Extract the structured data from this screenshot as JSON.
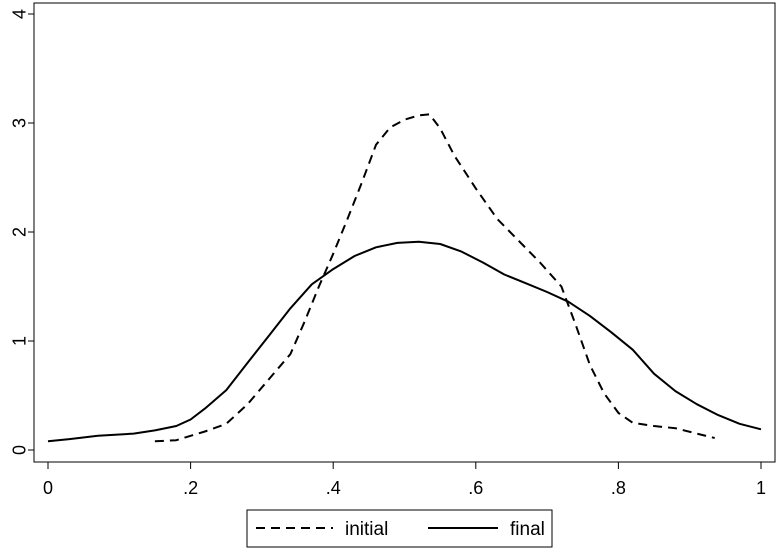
{
  "chart_data": {
    "type": "line",
    "title": "",
    "xlabel": "",
    "ylabel": "",
    "xlim": [
      0,
      1
    ],
    "ylim": [
      0,
      4
    ],
    "grid": false,
    "legend_position": "bottom",
    "x_ticks": [
      {
        "value": 0,
        "label": "0"
      },
      {
        "value": 0.2,
        "label": ".2"
      },
      {
        "value": 0.4,
        "label": ".4"
      },
      {
        "value": 0.6,
        "label": ".6"
      },
      {
        "value": 0.8,
        "label": ".8"
      },
      {
        "value": 1,
        "label": "1"
      }
    ],
    "y_ticks": [
      {
        "value": 0,
        "label": "0"
      },
      {
        "value": 1,
        "label": "1"
      },
      {
        "value": 2,
        "label": "2"
      },
      {
        "value": 3,
        "label": "3"
      },
      {
        "value": 4,
        "label": "4"
      }
    ],
    "series": [
      {
        "name": "initial",
        "style": "dashed",
        "color": "#000000",
        "points": [
          [
            0.15,
            0.08
          ],
          [
            0.18,
            0.09
          ],
          [
            0.2,
            0.13
          ],
          [
            0.22,
            0.17
          ],
          [
            0.25,
            0.24
          ],
          [
            0.28,
            0.42
          ],
          [
            0.31,
            0.65
          ],
          [
            0.34,
            0.88
          ],
          [
            0.36,
            1.18
          ],
          [
            0.38,
            1.5
          ],
          [
            0.4,
            1.8
          ],
          [
            0.42,
            2.12
          ],
          [
            0.44,
            2.45
          ],
          [
            0.46,
            2.8
          ],
          [
            0.48,
            2.96
          ],
          [
            0.5,
            3.03
          ],
          [
            0.52,
            3.07
          ],
          [
            0.535,
            3.08
          ],
          [
            0.55,
            2.95
          ],
          [
            0.57,
            2.7
          ],
          [
            0.6,
            2.4
          ],
          [
            0.63,
            2.12
          ],
          [
            0.66,
            1.92
          ],
          [
            0.69,
            1.72
          ],
          [
            0.72,
            1.5
          ],
          [
            0.74,
            1.15
          ],
          [
            0.76,
            0.78
          ],
          [
            0.78,
            0.52
          ],
          [
            0.8,
            0.34
          ],
          [
            0.82,
            0.25
          ],
          [
            0.85,
            0.22
          ],
          [
            0.88,
            0.2
          ],
          [
            0.91,
            0.15
          ],
          [
            0.935,
            0.11
          ]
        ]
      },
      {
        "name": "final",
        "style": "solid",
        "color": "#000000",
        "points": [
          [
            0.0,
            0.08
          ],
          [
            0.03,
            0.1
          ],
          [
            0.07,
            0.13
          ],
          [
            0.12,
            0.15
          ],
          [
            0.15,
            0.18
          ],
          [
            0.18,
            0.22
          ],
          [
            0.2,
            0.28
          ],
          [
            0.22,
            0.38
          ],
          [
            0.25,
            0.55
          ],
          [
            0.28,
            0.8
          ],
          [
            0.31,
            1.05
          ],
          [
            0.34,
            1.3
          ],
          [
            0.37,
            1.52
          ],
          [
            0.4,
            1.66
          ],
          [
            0.43,
            1.78
          ],
          [
            0.46,
            1.86
          ],
          [
            0.49,
            1.9
          ],
          [
            0.52,
            1.91
          ],
          [
            0.55,
            1.89
          ],
          [
            0.58,
            1.82
          ],
          [
            0.61,
            1.72
          ],
          [
            0.64,
            1.61
          ],
          [
            0.67,
            1.53
          ],
          [
            0.7,
            1.45
          ],
          [
            0.73,
            1.36
          ],
          [
            0.76,
            1.23
          ],
          [
            0.79,
            1.08
          ],
          [
            0.82,
            0.92
          ],
          [
            0.85,
            0.7
          ],
          [
            0.88,
            0.54
          ],
          [
            0.91,
            0.42
          ],
          [
            0.94,
            0.32
          ],
          [
            0.97,
            0.24
          ],
          [
            1.0,
            0.19
          ]
        ]
      }
    ]
  }
}
